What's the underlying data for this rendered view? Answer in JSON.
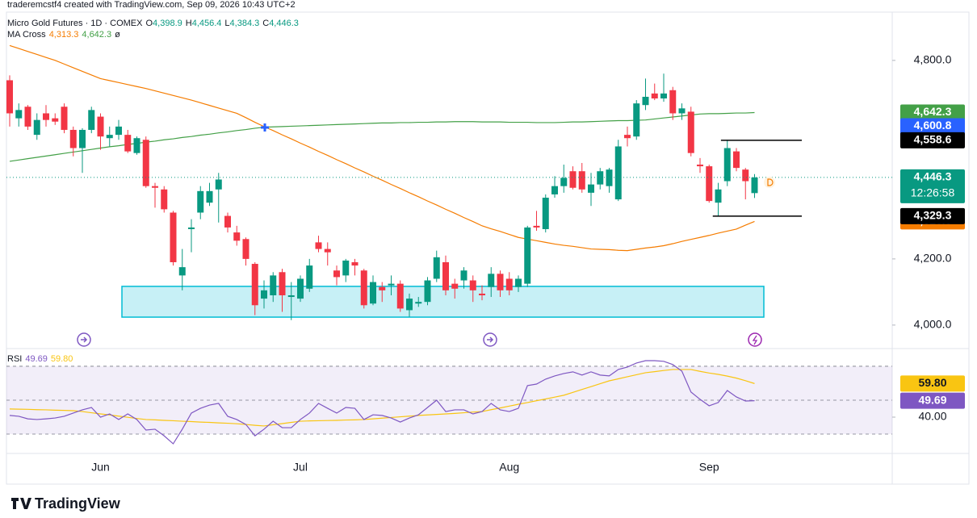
{
  "page": {
    "watermark": "traderemcstf4 created with TradingView.com, Sep 09, 2026 10:43 UTC+2",
    "brand": "TradingView"
  },
  "chart_data": {
    "type": "candlestick",
    "symbol": "Micro Gold Futures · 1D · COMEX",
    "indicator": "MA Cross",
    "indicator_suffix": "ø",
    "up_color": "#089981",
    "down_color": "#f23645",
    "categories": [
      null,
      null,
      null,
      null,
      null,
      null,
      null,
      null,
      null,
      null,
      "Jun",
      null,
      null,
      null,
      null,
      null,
      null,
      null,
      null,
      null,
      null,
      null,
      null,
      null,
      null,
      null,
      null,
      null,
      null,
      null,
      null,
      null,
      "Jul",
      null,
      null,
      null,
      null,
      null,
      null,
      null,
      null,
      null,
      null,
      null,
      null,
      null,
      null,
      null,
      null,
      null,
      null,
      null,
      null,
      null,
      null,
      "Aug",
      null,
      null,
      null,
      null,
      null,
      null,
      null,
      null,
      null,
      null,
      null,
      null,
      null,
      null,
      null,
      null,
      null,
      null,
      null,
      null,
      null,
      "Sep",
      null,
      null,
      null,
      null,
      null
    ],
    "candles": {
      "open": [
        4740,
        4625,
        4660,
        4575,
        4640,
        4625,
        4660,
        4590,
        4535,
        4590,
        4630,
        4565,
        4575,
        4575,
        4520,
        4560,
        4420,
        4410,
        4340,
        4150,
        4290,
        4340,
        4370,
        4410,
        4330,
        4280,
        4260,
        4185,
        4080,
        4090,
        4160,
        4085,
        4080,
        4110,
        4250,
        4230,
        4165,
        4150,
        4190,
        4165,
        4065,
        4115,
        4120,
        4125,
        4045,
        4065,
        4070,
        4140,
        4190,
        4125,
        4135,
        4135,
        4095,
        4115,
        4155,
        4140,
        4115,
        4125,
        4300,
        4290,
        4395,
        4420,
        4465,
        4465,
        4400,
        4425,
        4420,
        4380,
        4575,
        4570,
        4665,
        4700,
        4685,
        4710,
        4640,
        4645,
        4485,
        4480,
        4370,
        4435,
        4525,
        4470,
        4398.9
      ],
      "high": [
        4755,
        4670,
        4665,
        4640,
        4665,
        4640,
        4670,
        4600,
        4595,
        4660,
        4640,
        4600,
        4620,
        4590,
        4570,
        4570,
        4430,
        4420,
        4345,
        4230,
        4320,
        4420,
        4430,
        4460,
        4340,
        4300,
        4265,
        4190,
        4135,
        4160,
        4170,
        4130,
        4150,
        4200,
        4270,
        4250,
        4180,
        4200,
        4200,
        4170,
        4150,
        4130,
        4150,
        4135,
        4095,
        4085,
        4145,
        4225,
        4210,
        4140,
        4175,
        4150,
        4120,
        4175,
        4165,
        4160,
        4150,
        4300,
        4345,
        4395,
        4450,
        4485,
        4480,
        4490,
        4460,
        4475,
        4475,
        4560,
        4600,
        4680,
        4745,
        4730,
        4760,
        4720,
        4670,
        4660,
        4505,
        4485,
        4430,
        4560,
        4535,
        4475,
        4456.4
      ],
      "low": [
        4600,
        4600,
        4590,
        4560,
        4600,
        4605,
        4580,
        4510,
        4460,
        4580,
        4530,
        4540,
        4560,
        4520,
        4515,
        4415,
        4355,
        4340,
        4180,
        4105,
        4220,
        4320,
        4360,
        4310,
        4280,
        4240,
        4180,
        4030,
        4050,
        4070,
        4040,
        4015,
        4070,
        4100,
        4220,
        4180,
        4120,
        4130,
        4150,
        4050,
        4060,
        4070,
        4090,
        4040,
        4025,
        4055,
        4060,
        4130,
        4090,
        4080,
        4110,
        4070,
        4075,
        4085,
        4085,
        4090,
        4100,
        4115,
        4285,
        4280,
        4385,
        4400,
        4410,
        4400,
        4360,
        4410,
        4400,
        4375,
        4540,
        4560,
        4650,
        4680,
        4675,
        4620,
        4620,
        4510,
        4460,
        4370,
        4330,
        4420,
        4465,
        4380,
        4384.3
      ],
      "close": [
        4640,
        4650,
        4600,
        4620,
        4620,
        4615,
        4590,
        4535,
        4590,
        4650,
        4570,
        4575,
        4600,
        4525,
        4565,
        4420,
        4415,
        4350,
        4190,
        4175,
        4295,
        4405,
        4405,
        4440,
        4295,
        4255,
        4200,
        4060,
        4105,
        4150,
        4090,
        4090,
        4140,
        4180,
        4230,
        4220,
        4145,
        4195,
        4180,
        4060,
        4130,
        4105,
        4125,
        4050,
        4080,
        4070,
        4135,
        4205,
        4105,
        4110,
        4165,
        4105,
        4090,
        4155,
        4105,
        4105,
        4140,
        4295,
        4295,
        4385,
        4420,
        4445,
        4415,
        4410,
        4425,
        4465,
        4470,
        4540,
        4565,
        4670,
        4690,
        4685,
        4700,
        4640,
        4655,
        4520,
        4480,
        4375,
        4410,
        4535,
        4475,
        4435,
        4446.3
      ],
      "legend": [
        {
          "key": "O",
          "label": "4,398.9"
        },
        {
          "key": "H",
          "label": "4,456.4"
        },
        {
          "key": "L",
          "label": "4,384.3"
        },
        {
          "key": "C",
          "label": "4,446.3"
        }
      ],
      "countdown": "12:26:58"
    },
    "series": [
      {
        "color": "#f57c00",
        "value_label": "4,313.3",
        "values": [
          4845,
          4836,
          4827,
          4818,
          4809,
          4800,
          4789,
          4778,
          4767,
          4756,
          4745,
          4739,
          4733,
          4727,
          4721,
          4715,
          4708,
          4701,
          4694,
          4687,
          4680,
          4672,
          4664,
          4656,
          4648,
          4640,
          4627,
          4613,
          4600,
          4588,
          4575,
          4563,
          4550,
          4538,
          4525,
          4513,
          4500,
          4488,
          4475,
          4463,
          4450,
          4438,
          4425,
          4413,
          4400,
          4388,
          4375,
          4363,
          4350,
          4338,
          4325,
          4313,
          4300,
          4291,
          4283,
          4274,
          4265,
          4260,
          4255,
          4250,
          4245,
          4241,
          4238,
          4234,
          4230,
          4229,
          4228,
          4226,
          4225,
          4229,
          4233,
          4236,
          4240,
          4246,
          4253,
          4259,
          4265,
          4271,
          4278,
          4284,
          4290,
          4302,
          4313.3
        ]
      },
      {
        "color": "#43a047",
        "value_label": "4,642.3",
        "values": [
          4495,
          4499,
          4503,
          4507,
          4511,
          4515,
          4519,
          4523,
          4527,
          4531,
          4535,
          4539,
          4542,
          4546,
          4549,
          4553,
          4556,
          4560,
          4563,
          4567,
          4570,
          4574,
          4577,
          4581,
          4584,
          4588,
          4591,
          4595,
          4598,
          4599,
          4600,
          4601,
          4602,
          4603,
          4604,
          4605,
          4606,
          4607,
          4608,
          4609,
          4610,
          4611,
          4611,
          4612,
          4612,
          4613,
          4613,
          4614,
          4614,
          4615,
          4615,
          4615,
          4614,
          4614,
          4614,
          4613,
          4613,
          4613,
          4612,
          4612,
          4612,
          4613,
          4614,
          4614,
          4615,
          4616,
          4617,
          4618,
          4618,
          4619,
          4620,
          4623,
          4626,
          4629,
          4632,
          4635,
          4638,
          4639,
          4639,
          4640,
          4641,
          4641,
          4642.3
        ]
      }
    ],
    "price_labels": [
      {
        "value": 4600.8,
        "label": "4,600.8",
        "color": "#2962ff"
      },
      {
        "value": 4558.6,
        "label": "4,558.6",
        "color": "#000000"
      },
      {
        "value": 4329.3,
        "label": "4,329.3",
        "color": "#000000"
      }
    ],
    "zone": [
      4024,
      4117
    ],
    "ylim": [
      3929,
      4946
    ],
    "yticks": [
      {
        "value": 4000,
        "label": "4,000.0"
      },
      {
        "value": 4200,
        "label": "4,200.0"
      },
      {
        "value": 4800,
        "label": "4,800.0"
      }
    ],
    "grid": false,
    "rsi": {
      "title": "RSI",
      "ylim": [
        18.6,
        79
      ],
      "yticks": [
        {
          "value": 40,
          "label": "40.00"
        }
      ],
      "bands": [
        70,
        50,
        30
      ],
      "series": [
        {
          "color": "#7e57c2",
          "value_label": "49.69",
          "values": [
            41.0,
            40.5,
            39.0,
            38.6,
            39.0,
            39.5,
            40.5,
            42.4,
            44.3,
            45.7,
            40.0,
            41.9,
            38.6,
            41.9,
            38.6,
            32.4,
            32.9,
            29.0,
            24.3,
            32.9,
            42.4,
            45.2,
            47.1,
            48.1,
            40.5,
            38.6,
            35.7,
            29.0,
            32.9,
            37.6,
            33.8,
            33.8,
            38.6,
            42.4,
            48.1,
            45.2,
            42.4,
            45.7,
            45.2,
            38.6,
            41.4,
            41.0,
            39.5,
            37.1,
            39.5,
            41.4,
            45.7,
            50.0,
            43.3,
            44.3,
            44.3,
            41.9,
            43.3,
            48.1,
            44.3,
            43.3,
            45.2,
            58.6,
            59.5,
            62.4,
            64.3,
            65.7,
            66.7,
            64.8,
            66.7,
            64.8,
            64.3,
            68.1,
            69.5,
            71.9,
            73.3,
            73.3,
            72.9,
            71.0,
            67.1,
            54.8,
            50.5,
            46.7,
            48.6,
            55.7,
            51.9,
            49.5,
            49.69
          ]
        },
        {
          "color": "#f9c512",
          "value_label": "59.80",
          "values": [
            44.8,
            44.7,
            44.6,
            44.4,
            44.3,
            44.1,
            44.0,
            43.8,
            43.3,
            42.6,
            41.9,
            41.3,
            40.6,
            39.9,
            39.2,
            38.6,
            38.4,
            38.1,
            37.9,
            37.6,
            37.4,
            37.1,
            36.9,
            36.6,
            36.4,
            36.1,
            35.7,
            35.2,
            34.8,
            35.5,
            36.2,
            36.9,
            37.6,
            37.8,
            37.9,
            38.0,
            38.1,
            38.3,
            38.4,
            38.6,
            39.0,
            39.4,
            39.8,
            40.2,
            40.6,
            41.0,
            41.3,
            41.6,
            41.9,
            42.2,
            42.6,
            43.0,
            43.3,
            44.4,
            45.4,
            46.5,
            47.6,
            48.6,
            49.7,
            50.7,
            51.8,
            52.9,
            54.6,
            56.3,
            58.0,
            59.7,
            61.4,
            62.6,
            63.8,
            65.0,
            66.2,
            66.8,
            67.5,
            68.1,
            68.1,
            68.1,
            67.0,
            66.0,
            65.2,
            64.2,
            63.0,
            61.5,
            59.8
          ]
        }
      ]
    }
  }
}
